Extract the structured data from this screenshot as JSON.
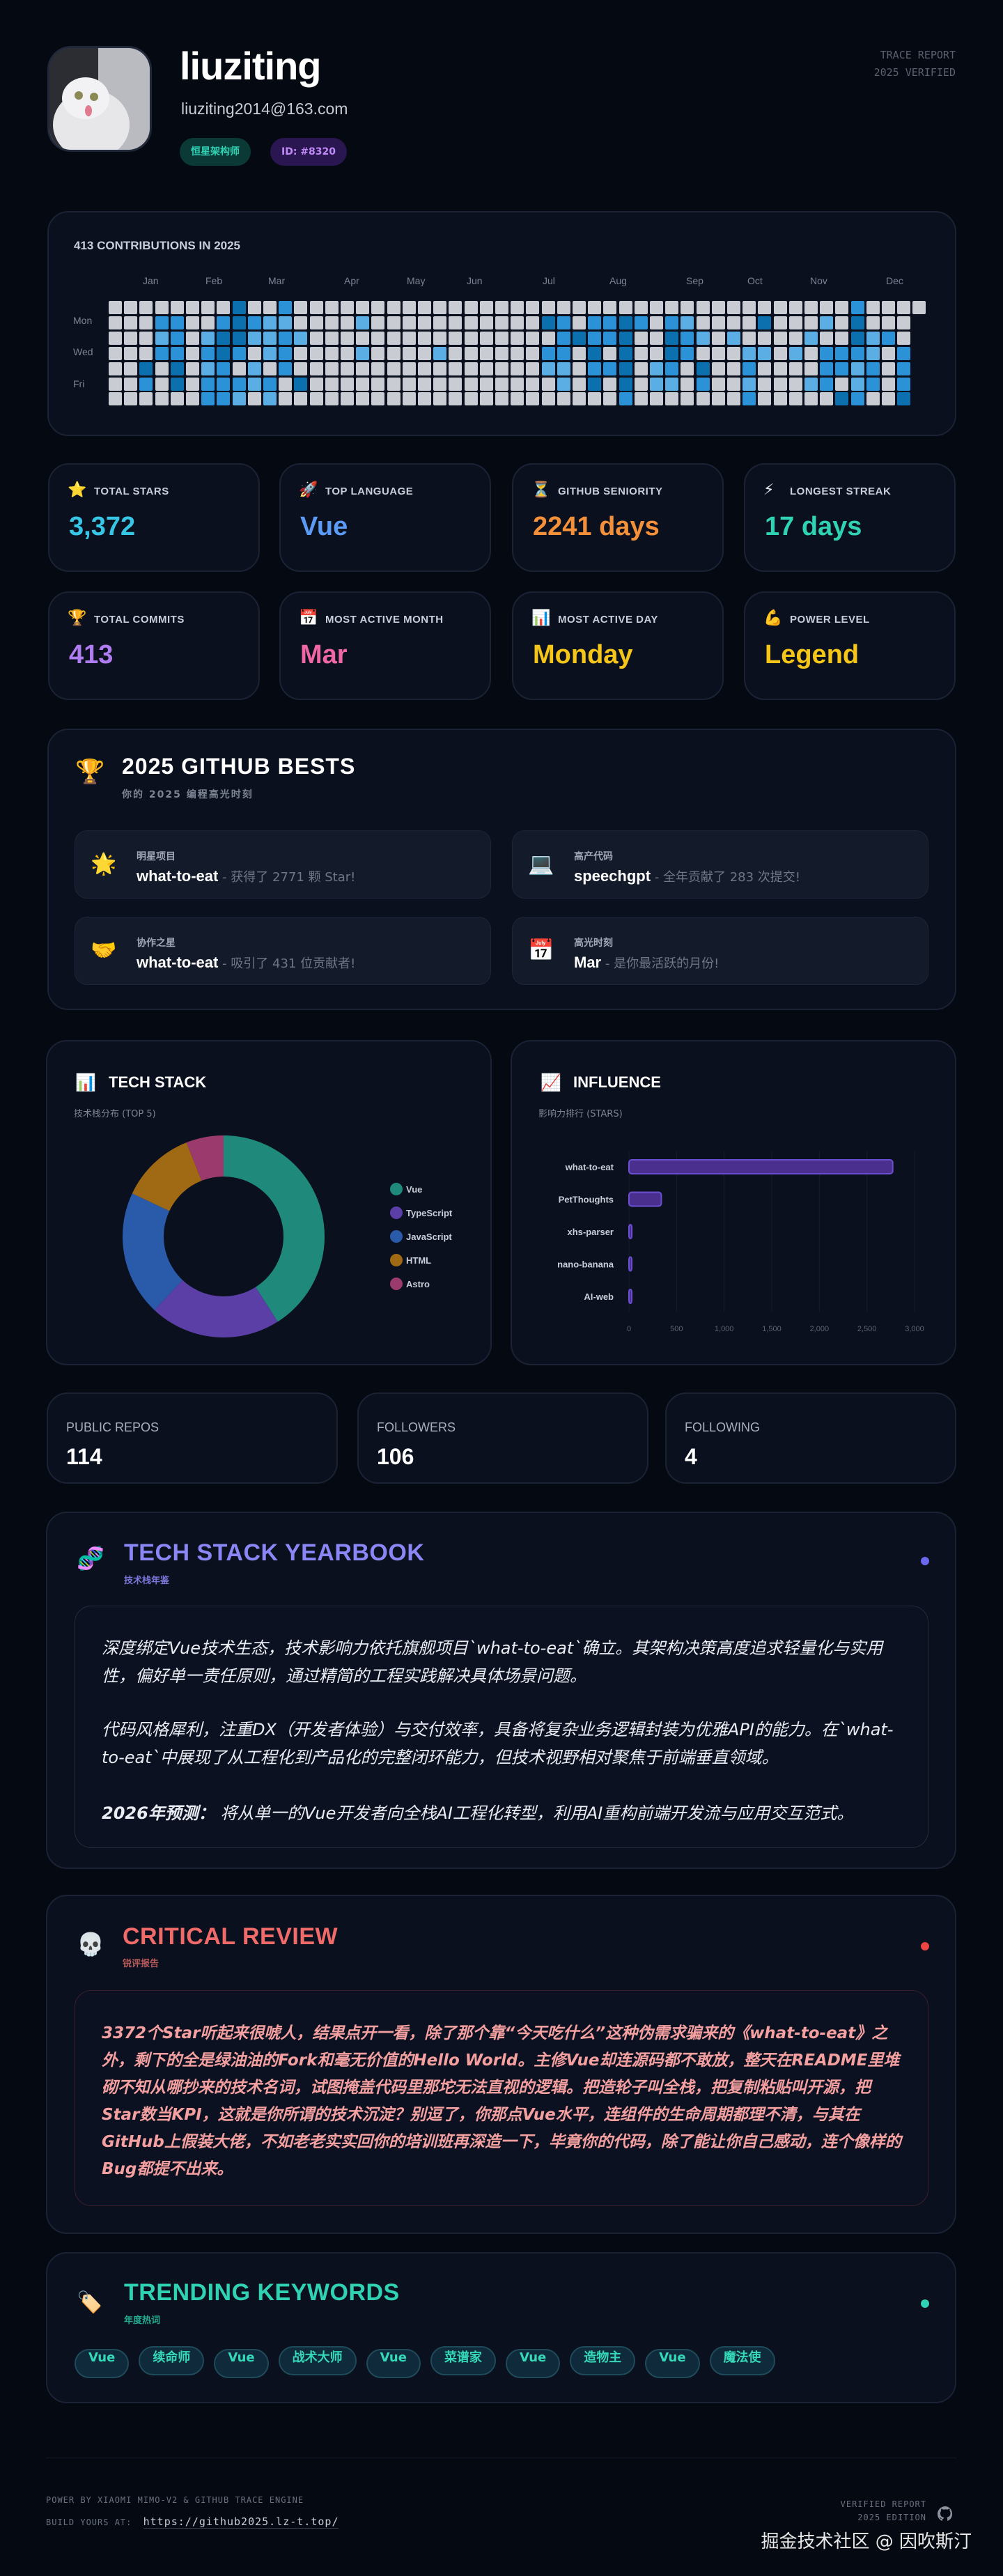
{
  "profile": {
    "name": "liuziting",
    "email": "liuziting2014@163.com",
    "badges": [
      "恒星架构师",
      "ID: #8320"
    ],
    "trace_line1": "TRACE REPORT",
    "trace_line2": "2025 VERIFIED"
  },
  "contributions": {
    "title": "413 CONTRIBUTIONS IN 2025",
    "months": [
      "Jan",
      "Feb",
      "Mar",
      "Apr",
      "May",
      "Jun",
      "Jul",
      "Aug",
      "Sep",
      "Oct",
      "Nov",
      "Dec"
    ],
    "day_labels": [
      "Mon",
      "Wed",
      "Fri"
    ],
    "colors": [
      "#c9ccd2",
      "#5aaee3",
      "#2b92d8",
      "#0c6fae"
    ],
    "levels": [
      {
        "8": 3,
        "11": 2,
        "48": 2
      },
      {
        "3": 2,
        "4": 2,
        "7": 2,
        "8": 3,
        "9": 2,
        "10": 1,
        "11": 1,
        "16": 1,
        "28": 3,
        "29": 2,
        "31": 2,
        "32": 2,
        "33": 3,
        "34": 2,
        "36": 2,
        "37": 1,
        "42": 3,
        "46": 1,
        "48": 3
      },
      {
        "3": 1,
        "4": 2,
        "6": 1,
        "7": 3,
        "8": 3,
        "9": 1,
        "10": 1,
        "11": 2,
        "12": 1,
        "29": 2,
        "30": 3,
        "31": 2,
        "32": 2,
        "33": 3,
        "36": 3,
        "37": 2,
        "38": 1,
        "40": 1,
        "45": 1,
        "48": 3,
        "49": 1,
        "50": 2
      },
      {
        "3": 2,
        "4": 2,
        "6": 2,
        "7": 3,
        "8": 2,
        "10": 1,
        "11": 2,
        "16": 1,
        "21": 1,
        "28": 2,
        "29": 2,
        "31": 3,
        "33": 3,
        "36": 3,
        "37": 2,
        "41": 1,
        "42": 1,
        "44": 1,
        "46": 2,
        "47": 2,
        "48": 2,
        "49": 1,
        "51": 2
      },
      {
        "2": 3,
        "4": 3,
        "6": 1,
        "7": 2,
        "9": 1,
        "11": 2,
        "28": 1,
        "29": 1,
        "31": 2,
        "32": 2,
        "33": 3,
        "35": 1,
        "36": 2,
        "38": 3,
        "41": 2,
        "46": 2,
        "47": 2,
        "48": 1,
        "49": 2,
        "51": 2
      },
      {
        "2": 2,
        "4": 3,
        "6": 2,
        "7": 2,
        "8": 2,
        "9": 1,
        "10": 2,
        "12": 3,
        "29": 1,
        "31": 3,
        "33": 3,
        "35": 1,
        "36": 1,
        "38": 2,
        "41": 1,
        "45": 1,
        "46": 2,
        "48": 1,
        "49": 2,
        "51": 2
      },
      {
        "6": 2,
        "7": 2,
        "8": 1,
        "10": 1,
        "33": 2,
        "41": 2,
        "47": 3,
        "48": 2,
        "51": 3
      }
    ]
  },
  "stats": [
    {
      "icon": "star-icon",
      "glyph": "⭐",
      "label": "TOTAL STARS",
      "value": "3,372",
      "color": "#38c6e6"
    },
    {
      "icon": "rocket-icon",
      "glyph": "🚀",
      "label": "TOP LANGUAGE",
      "value": "Vue",
      "color": "#5b9bf5"
    },
    {
      "icon": "hourglass-icon",
      "glyph": "⏳",
      "label": "GITHUB SENIORITY",
      "value": "2241 days",
      "color": "#f4903a"
    },
    {
      "icon": "lightning-icon",
      "glyph": "⚡",
      "label": "LONGEST STREAK",
      "value": "17 days",
      "color": "#2fd3b4"
    },
    {
      "icon": "trophy-icon",
      "glyph": "🏆",
      "label": "TOTAL COMMITS",
      "value": "413",
      "color": "#b07cf2"
    },
    {
      "icon": "calendar-icon",
      "glyph": "📅",
      "label": "MOST ACTIVE MONTH",
      "value": "Mar",
      "color": "#f067a6"
    },
    {
      "icon": "bar-chart-icon",
      "glyph": "📊",
      "label": "MOST ACTIVE DAY",
      "value": "Monday",
      "color": "#f5c518"
    },
    {
      "icon": "muscle-icon",
      "glyph": "💪",
      "label": "POWER LEVEL",
      "value": "Legend",
      "color": "#f5c518"
    }
  ],
  "bests": {
    "title": "2025 GITHUB BESTS",
    "subtitle": "你的 2025 编程高光时刻",
    "items": [
      {
        "icon": "star-icon",
        "glyph": "🌟",
        "caption": "明星项目",
        "name": "what-to-eat",
        "desc": " - 获得了 2771 颗 Star!"
      },
      {
        "icon": "laptop-icon",
        "glyph": "💻",
        "caption": "高产代码",
        "name": "speechgpt",
        "desc": " - 全年贡献了 283 次提交!"
      },
      {
        "icon": "handshake-icon",
        "glyph": "🤝",
        "caption": "协作之星",
        "name": "what-to-eat",
        "desc": " - 吸引了 431 位贡献者!"
      },
      {
        "icon": "calendar-icon",
        "glyph": "📅",
        "caption": "高光时刻",
        "name": "Mar",
        "desc": " - 是你最活跃的月份!"
      }
    ]
  },
  "tech_stack": {
    "title": "TECH STACK",
    "subtitle": "技术栈分布 (TOP 5)"
  },
  "influence": {
    "title": "INFLUENCE",
    "subtitle": "影响力排行 (STARS)"
  },
  "chart_data": [
    {
      "type": "pie",
      "donut": true,
      "categories": [
        "Vue",
        "TypeScript",
        "JavaScript",
        "HTML",
        "Astro"
      ],
      "values": [
        41,
        21,
        20,
        12,
        6
      ],
      "colors": [
        "#1f8a7c",
        "#5b3fa6",
        "#2a5bab",
        "#a06a14",
        "#9b3a6d"
      ],
      "legend": "right"
    },
    {
      "type": "bar",
      "orientation": "horizontal",
      "categories": [
        "what-to-eat",
        "PetThoughts",
        "xhs-parser",
        "nano-banana",
        "AI-web"
      ],
      "values": [
        2771,
        340,
        30,
        25,
        25
      ],
      "xlim": [
        0,
        3000
      ],
      "xticks": [
        "0",
        "500",
        "1,000",
        "1,500",
        "2,000",
        "2,500",
        "3,000"
      ],
      "grid": true,
      "color": "#5b3fa6"
    }
  ],
  "mini_stats": [
    {
      "label": "PUBLIC REPOS",
      "value": "114"
    },
    {
      "label": "FOLLOWERS",
      "value": "106"
    },
    {
      "label": "FOLLOWING",
      "value": "4"
    }
  ],
  "yearbook": {
    "title": "TECH STACK YEARBOOK",
    "subtitle": "技术栈年鉴",
    "accent": "#8b86f5",
    "p1": "深度绑定Vue技术生态，技术影响力依托旗舰项目`what-to-eat`确立。其架构决策高度追求轻量化与实用性，偏好单一责任原则，通过精简的工程实践解决具体场景问题。",
    "p2": "代码风格犀利，注重DX（开发者体验）与交付效率，具备将复杂业务逻辑封装为优雅API的能力。在`what-to-eat`中展现了从工程化到产品化的完整闭环能力，但技术视野相对聚焦于前端垂直领域。",
    "prediction_label": "2026年预测：",
    "prediction": " 将从单一的Vue开发者向全栈AI工程化转型，利用AI重构前端开发流与应用交互范式。"
  },
  "review": {
    "title": "CRITICAL REVIEW",
    "subtitle": "锐评报告",
    "accent": "#f06a6a",
    "text": "3372个Star听起来很唬人，结果点开一看，除了那个靠“今天吃什么”这种伪需求骗来的《what-to-eat》之外，剩下的全是绿油油的Fork和毫无价值的Hello World。主修Vue却连源码都不敢放，整天在README里堆砌不知从哪抄来的技术名词，试图掩盖代码里那坨无法直视的逻辑。把造轮子叫全栈，把复制粘贴叫开源，把Star数当KPI，这就是你所谓的技术沉淀？别逗了，你那点Vue水平，连组件的生命周期都理不清，与其在GitHub上假装大佬，不如老老实实回你的培训班再深造一下，毕竟你的代码，除了能让你自己感动，连个像样的Bug都提不出来。"
  },
  "keywords": {
    "title": "TRENDING KEYWORDS",
    "subtitle": "年度热词",
    "accent": "#2fd3b4",
    "items": [
      "Vue",
      "续命师",
      "Vue",
      "战术大师",
      "Vue",
      "菜谱家",
      "Vue",
      "造物主",
      "Vue",
      "魔法使"
    ]
  },
  "footer": {
    "powered": "POWER BY XIAOMI MIMO-V2 & GITHUB TRACE ENGINE",
    "build_label": "BUILD YOURS AT:",
    "build_url": "https://github2025.lz-t.top/",
    "verified": "VERIFIED REPORT",
    "edition": "2025 EDITION",
    "watermark": "掘金技术社区 @ 因吹斯汀"
  }
}
